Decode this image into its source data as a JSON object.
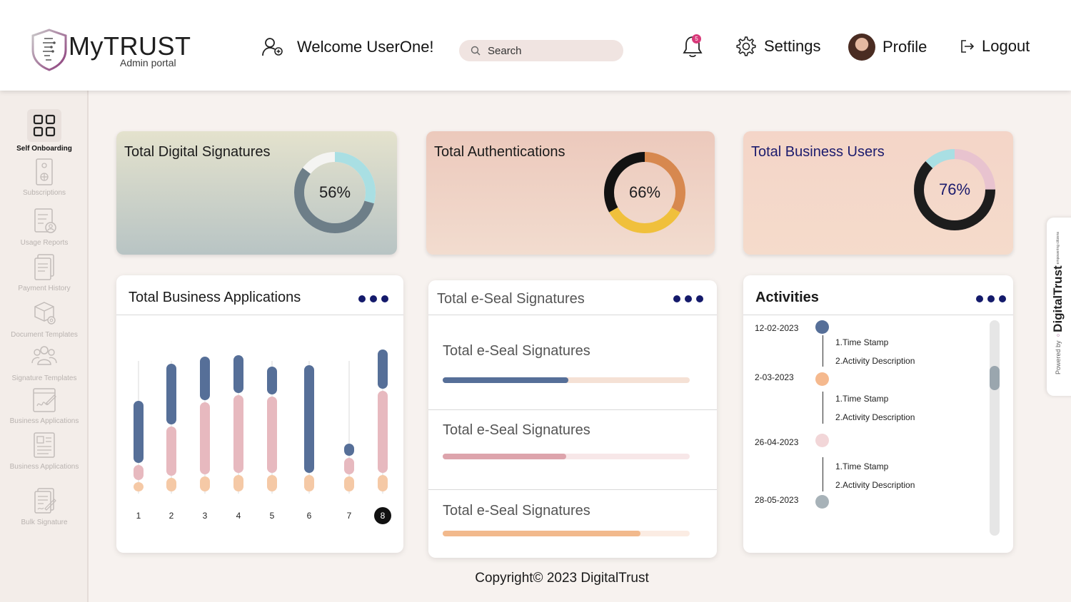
{
  "header": {
    "brand": "MyTRUST",
    "brand_sub": "Admin portal",
    "welcome": "Welcome UserOne!",
    "search_placeholder": "Search",
    "notification_count": "5",
    "settings": "Settings",
    "profile": "Profile",
    "logout": "Logout"
  },
  "sidebar": {
    "items": [
      {
        "label": "Self Onboarding",
        "icon": "grid-icon",
        "active": true
      },
      {
        "label": "Subscriptions",
        "icon": "subscription-icon"
      },
      {
        "label": "Usage Reports",
        "icon": "usage-report-icon"
      },
      {
        "label": "Payment History",
        "icon": "payment-history-icon"
      },
      {
        "label": "Document Templates",
        "icon": "document-template-icon"
      },
      {
        "label": "Signature Templates",
        "icon": "users-group-icon"
      },
      {
        "label": "Business Applications",
        "icon": "signature-icon"
      },
      {
        "label": "Business Applications",
        "icon": "profile-card-icon"
      },
      {
        "label": "Bulk Signature",
        "icon": "bulk-signature-icon"
      }
    ]
  },
  "stats": [
    {
      "title": "Total Digital Signatures",
      "percent": 56,
      "display": "56%"
    },
    {
      "title": "Total Authentications",
      "percent": 66,
      "display": "66%"
    },
    {
      "title": "Total Business Users",
      "percent": 76,
      "display": "76%"
    }
  ],
  "apps_card": {
    "title": "Total Business Applications",
    "selected": "8"
  },
  "chart_data": {
    "type": "bar",
    "categories": [
      "1",
      "2",
      "3",
      "4",
      "5",
      "6",
      "7",
      "8"
    ],
    "series": [
      {
        "values": [
          0.45,
          0.44,
          0.32,
          0.28,
          0.21,
          0.77,
          0.1,
          0.29
        ],
        "color": "#566f98"
      },
      {
        "values": [
          0.12,
          0.36,
          0.52,
          0.56,
          0.55,
          0.0,
          0.13,
          0.59
        ],
        "color": "#e7b9bf"
      },
      {
        "values": [
          0.08,
          0.11,
          0.12,
          0.13,
          0.13,
          0.13,
          0.12,
          0.13
        ],
        "color": "#f5c9a6"
      }
    ],
    "ylim": [
      0,
      1
    ],
    "grid": false
  },
  "seal_card": {
    "title": "Total e-Seal Signatures",
    "rows": [
      {
        "label": "Total e-Seal Signatures",
        "fraction": 0.51,
        "fill": "#566f98",
        "track": "#f5e1d5"
      },
      {
        "label": "Total e-Seal Signatures",
        "fraction": 0.5,
        "fill": "#dda4ac",
        "track": "#f7e7e8"
      },
      {
        "label": "Total e-Seal Signatures",
        "fraction": 0.8,
        "fill": "#f2b98c",
        "track": "#fbece3"
      }
    ]
  },
  "activities": {
    "title": "Activities",
    "items": [
      {
        "date": "12-02-2023",
        "color": "#566f98",
        "lines": [
          "1.Time Stamp",
          "2.Activity Description"
        ]
      },
      {
        "date": "2-03-2023",
        "color": "#f5b98e",
        "lines": [
          "1.Time Stamp",
          "2.Activity Description"
        ]
      },
      {
        "date": "26-04-2023",
        "color": "#f2d6d8",
        "lines": [
          "1.Time Stamp",
          "2.Activity Description"
        ]
      },
      {
        "date": "28-05-2023",
        "color": "#a7b2b8",
        "lines": []
      }
    ]
  },
  "footer": {
    "copyright": "Copyright© 2023 DigitalTrust"
  },
  "powered": {
    "prefix": "Powered by",
    "brand": "DigitalTrust",
    "tagline": "empowering citizens"
  }
}
